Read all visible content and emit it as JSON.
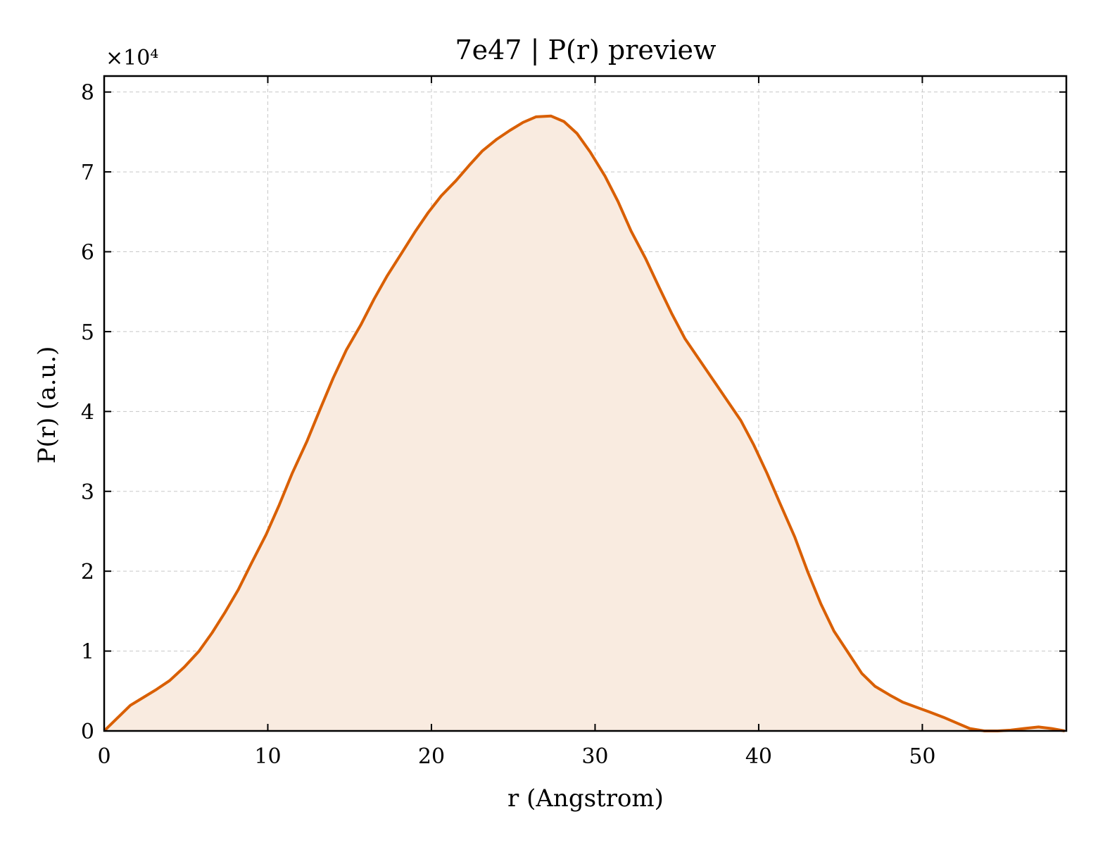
{
  "chart_data": {
    "type": "line",
    "title": "7e47 | P(r) preview",
    "xlabel": "r (Angstrom)",
    "ylabel": "P(r) (a.u.)",
    "y_multiplier_label": "×10⁴",
    "y_multiplier": 10000,
    "xlim": [
      0,
      58.8
    ],
    "ylim": [
      0,
      82000
    ],
    "x_ticks": [
      0,
      10,
      20,
      30,
      40,
      50
    ],
    "x_tick_labels": [
      "0",
      "10",
      "20",
      "30",
      "40",
      "50"
    ],
    "y_ticks": [
      0,
      10000,
      20000,
      30000,
      40000,
      50000,
      60000,
      70000,
      80000
    ],
    "y_tick_labels": [
      "0",
      "1",
      "2",
      "3",
      "4",
      "5",
      "6",
      "7",
      "8"
    ],
    "grid": true,
    "fill_under": true,
    "colors": {
      "line": "#d95f02",
      "fill": "#f9ebe0"
    },
    "series": [
      {
        "x": [
          0,
          0.8,
          1.6,
          2.4,
          3.2,
          4.0,
          4.9,
          5.8,
          6.6,
          7.4,
          8.2,
          9.0,
          9.9,
          10.7,
          11.5,
          12.4,
          13.2,
          14.0,
          14.8,
          15.7,
          16.5,
          17.3,
          18.2,
          19.0,
          19.8,
          20.6,
          21.5,
          22.3,
          23.1,
          24.0,
          24.8,
          25.6,
          26.4,
          27.3,
          28.1,
          28.9,
          29.7,
          30.6,
          31.4,
          32.2,
          33.1,
          33.9,
          34.7,
          35.5,
          36.4,
          37.2,
          38.0,
          38.9,
          39.7,
          40.5,
          41.3,
          42.2,
          43.0,
          43.8,
          44.6,
          45.5,
          46.3,
          47.1,
          48.0,
          48.8,
          49.6,
          50.4,
          51.3,
          52.1,
          52.9,
          53.8,
          54.6,
          55.4,
          56.2,
          57.1,
          57.9,
          58.7
        ],
        "y": [
          0,
          1600,
          3200,
          4200,
          5200,
          6300,
          8000,
          10000,
          12300,
          14900,
          17700,
          21000,
          24600,
          28300,
          32300,
          36300,
          40300,
          44200,
          47700,
          50900,
          54100,
          57000,
          59900,
          62500,
          64900,
          67000,
          68900,
          70800,
          72600,
          74100,
          75200,
          76200,
          76900,
          77000,
          76300,
          74800,
          72500,
          69500,
          66300,
          62600,
          59100,
          55600,
          52200,
          49100,
          46400,
          44000,
          41600,
          38900,
          35800,
          32300,
          28500,
          24300,
          19900,
          15900,
          12500,
          9700,
          7200,
          5600,
          4500,
          3600,
          3000,
          2400,
          1700,
          1000,
          300,
          0,
          0,
          100,
          300,
          500,
          300,
          0
        ]
      }
    ]
  }
}
